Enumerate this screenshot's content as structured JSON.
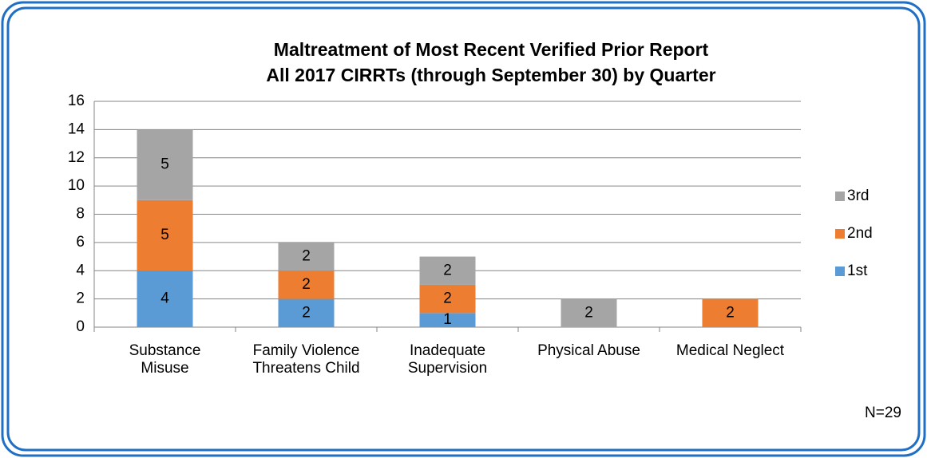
{
  "chart_data": {
    "type": "stacked_bar",
    "title": "Maltreatment of Most Recent Verified Prior Report",
    "subtitle": "All 2017 CIRRTs (through September 30) by Quarter",
    "categories": [
      "Substance\nMisuse",
      "Family Violence\nThreatens Child",
      "Inadequate\nSupervision",
      "Physical Abuse",
      "Medical Neglect"
    ],
    "series": [
      {
        "name": "1st",
        "color": "#5b9bd5",
        "values": [
          4,
          2,
          1,
          0,
          0
        ]
      },
      {
        "name": "2nd",
        "color": "#ed7d31",
        "values": [
          5,
          2,
          2,
          0,
          2
        ]
      },
      {
        "name": "3rd",
        "color": "#a5a5a5",
        "values": [
          5,
          2,
          2,
          2,
          0
        ]
      }
    ],
    "ylim": [
      0,
      16
    ],
    "yticks": [
      0,
      2,
      4,
      6,
      8,
      10,
      12,
      14,
      16
    ],
    "grid": true,
    "legend": "right",
    "annotation": "N=29"
  }
}
